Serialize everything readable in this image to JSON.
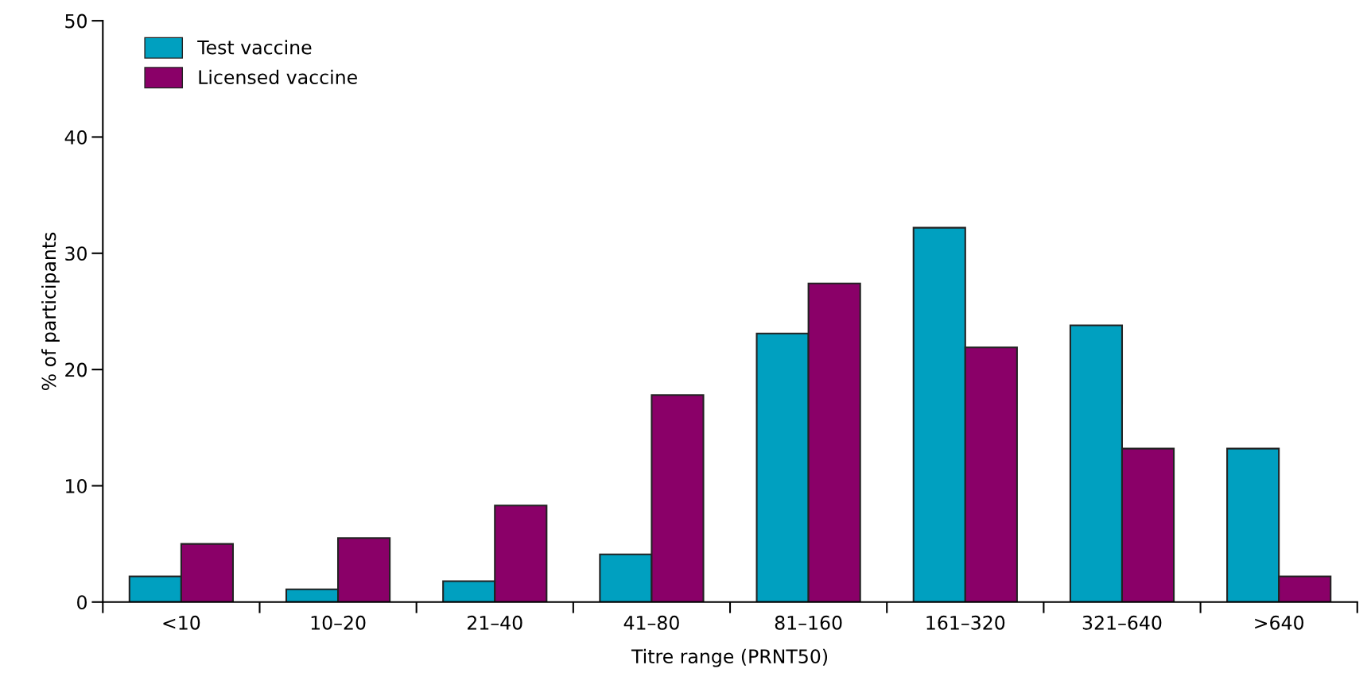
{
  "chart_data": {
    "type": "bar",
    "xlabel": "Titre range (PRNT50)",
    "ylabel": "% of participants",
    "categories": [
      "<10",
      "10–20",
      "21–40",
      "41–80",
      "81–160",
      "161–320",
      "321–640",
      ">640"
    ],
    "series": [
      {
        "name": "Test vaccine",
        "color": "#00a0c0",
        "values": [
          2.2,
          1.1,
          1.8,
          4.1,
          23.1,
          32.2,
          23.8,
          13.2
        ]
      },
      {
        "name": "Licensed vaccine",
        "color": "#8a0068",
        "values": [
          5.0,
          5.5,
          8.3,
          17.8,
          27.4,
          21.9,
          13.2,
          2.2
        ]
      }
    ],
    "ylim": [
      0,
      50
    ],
    "yticks": [
      0,
      10,
      20,
      30,
      40,
      50
    ],
    "grid": false,
    "legend": "top left"
  }
}
